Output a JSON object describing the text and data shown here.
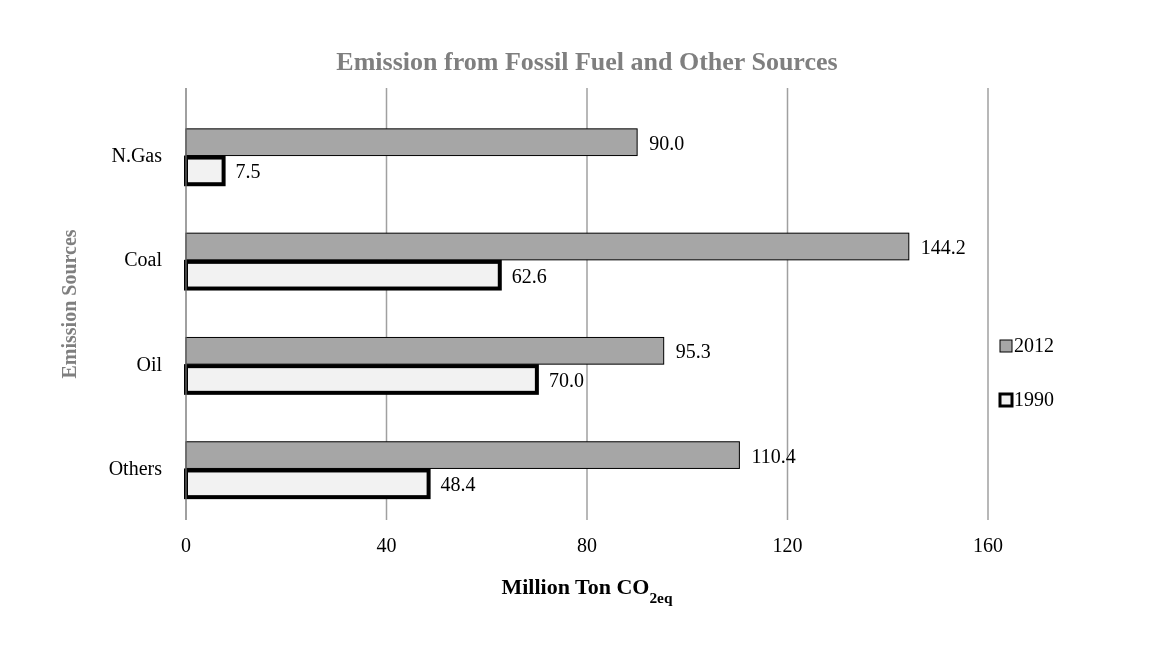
{
  "chart_data": {
    "type": "bar",
    "orientation": "horizontal",
    "title": "Emission from Fossil Fuel and Other Sources",
    "xlabel": "Million Ton CO$_{2eq}$",
    "ylabel": "Emission Sources",
    "categories": [
      "N.Gas",
      "Coal",
      "Oil",
      "Others"
    ],
    "series": [
      {
        "name": "2012",
        "color": "#a6a6a6",
        "values": [
          90.0,
          144.2,
          95.3,
          110.4
        ],
        "value_labels": [
          "90.0",
          "144.2",
          "95.3",
          "110.4"
        ]
      },
      {
        "name": "1990",
        "color": "#f2f2f2",
        "values": [
          7.5,
          62.6,
          70.0,
          48.4
        ],
        "value_labels": [
          "7.5",
          "62.6",
          "70.0",
          "48.4"
        ]
      }
    ],
    "xlim": [
      0,
      160
    ],
    "xticks": [
      0,
      40,
      80,
      120,
      160
    ],
    "grid": "x",
    "legend": "right"
  }
}
